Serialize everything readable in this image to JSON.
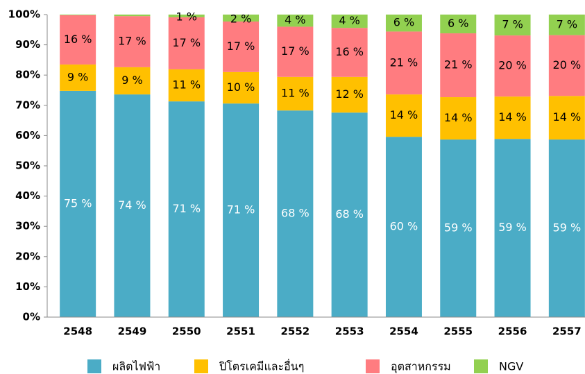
{
  "chart_data": {
    "type": "stacked_bar_percent",
    "categories": [
      "2548",
      "2549",
      "2550",
      "2551",
      "2552",
      "2553",
      "2554",
      "2555",
      "2556",
      "2557"
    ],
    "series": [
      {
        "name": "ผลิตไฟฟ้า",
        "color": "#4bacc6",
        "values": [
          74.8,
          73.6,
          71.3,
          70.6,
          68.3,
          67.6,
          59.6,
          58.7,
          58.9,
          58.7
        ],
        "value_labels": [
          "75 %",
          "74 %",
          "71 %",
          "71 %",
          "68 %",
          "68 %",
          "60 %",
          "59 %",
          "59 %",
          "59 %"
        ]
      },
      {
        "name": "ปิโตรเคมีและอื่นๆ",
        "color": "#ffc000",
        "values": [
          8.7,
          9.0,
          10.6,
          10.4,
          11.1,
          11.8,
          14.0,
          14.0,
          14.0,
          14.4
        ],
        "value_labels": [
          "9 %",
          "9 %",
          "11 %",
          "10 %",
          "11 %",
          "12 %",
          "14 %",
          "14 %",
          "14 %",
          "14 %"
        ]
      },
      {
        "name": "อุตสาหกรรม",
        "color": "#ff7c80",
        "values": [
          16.3,
          16.9,
          17.2,
          16.7,
          16.6,
          16.2,
          20.8,
          21.1,
          20.2,
          20.1
        ],
        "value_labels": [
          "16 %",
          "17 %",
          "17 %",
          "17 %",
          "17 %",
          "16 %",
          "21 %",
          "21 %",
          "20 %",
          "20 %"
        ]
      },
      {
        "name": "NGV",
        "color": "#92d050",
        "values": [
          0.2,
          0.5,
          0.9,
          2.3,
          4.0,
          4.4,
          5.6,
          6.2,
          6.9,
          6.8
        ],
        "value_labels": [
          null,
          null,
          "1 %",
          "2 %",
          "4 %",
          "4 %",
          "6 %",
          "6 %",
          "7 %",
          "7 %"
        ]
      }
    ],
    "ylim": [
      0,
      100
    ],
    "yticks": [
      {
        "value": 0,
        "label": "0%"
      },
      {
        "value": 10,
        "label": "10%"
      },
      {
        "value": 20,
        "label": "20%"
      },
      {
        "value": 30,
        "label": "30%"
      },
      {
        "value": 40,
        "label": "40%"
      },
      {
        "value": 50,
        "label": "50%"
      },
      {
        "value": 60,
        "label": "60%"
      },
      {
        "value": 70,
        "label": "70%"
      },
      {
        "value": 80,
        "label": "80%"
      },
      {
        "value": 90,
        "label": "90%"
      },
      {
        "value": 100,
        "label": "100%"
      }
    ],
    "label_colors": [
      "#ffffff",
      "#000000",
      "#000000",
      "#000000"
    ],
    "grid": false,
    "legend": "bottom"
  }
}
